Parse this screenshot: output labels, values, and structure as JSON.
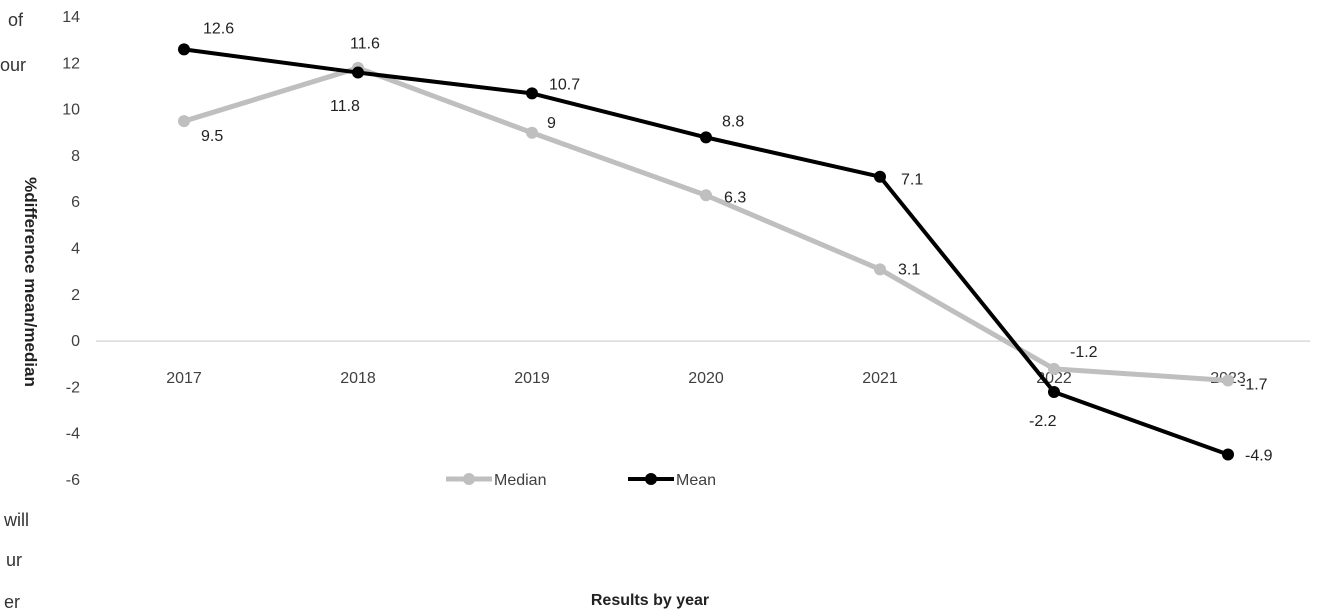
{
  "edge_text": [
    "of",
    "our",
    "will",
    "ur",
    "er"
  ],
  "chart_data": {
    "type": "line",
    "title": "",
    "xlabel": "Results by year",
    "ylabel": "%difference mean/median",
    "categories": [
      "2017",
      "2018",
      "2019",
      "2020",
      "2021",
      "2022",
      "2023"
    ],
    "ylim": [
      -6,
      14
    ],
    "yticks": [
      "14",
      "12",
      "10",
      "8",
      "6",
      "4",
      "2",
      "0",
      "-2",
      "-4",
      "-6"
    ],
    "grid": false,
    "legend_position": "bottom-center",
    "series": [
      {
        "name": "Median",
        "color": "#bfbfbf",
        "values": [
          9.5,
          11.8,
          9,
          6.3,
          3.1,
          -1.2,
          -1.7
        ],
        "labels": [
          "9.5",
          "11.8",
          "9",
          "6.3",
          "3.1",
          "-1.2",
          "-1.7"
        ]
      },
      {
        "name": "Mean",
        "color": "#000000",
        "values": [
          12.6,
          11.6,
          10.7,
          8.8,
          7.1,
          -2.2,
          -4.9
        ],
        "labels": [
          "12.6",
          "11.6",
          "10.7",
          "8.8",
          "7.1",
          "-2.2",
          "-4.9"
        ]
      }
    ]
  }
}
